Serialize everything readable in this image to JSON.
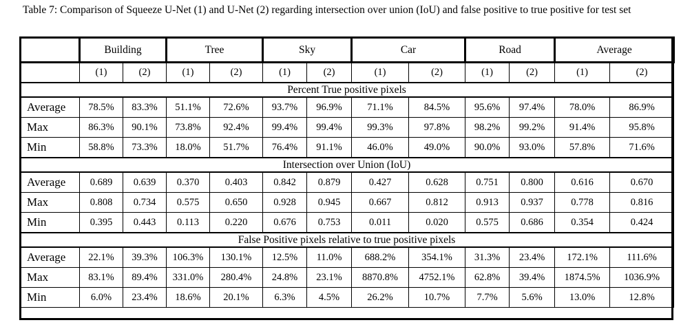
{
  "caption": "Table 7: Comparison of Squeeze U-Net (1) and U-Net (2) regarding intersection over union (IoU) and false positive to true positive for test set",
  "groups": [
    "Building",
    "Tree",
    "Sky",
    "Car",
    "Road",
    "Average"
  ],
  "models": [
    "(1)",
    "(2)"
  ],
  "sections": [
    {
      "title": "Percent True positive pixels",
      "rows": [
        {
          "label": "Average",
          "values": [
            "78.5%",
            "83.3%",
            "51.1%",
            "72.6%",
            "93.7%",
            "96.9%",
            "71.1%",
            "84.5%",
            "95.6%",
            "97.4%",
            "78.0%",
            "86.9%"
          ]
        },
        {
          "label": "Max",
          "values": [
            "86.3%",
            "90.1%",
            "73.8%",
            "92.4%",
            "99.4%",
            "99.4%",
            "99.3%",
            "97.8%",
            "98.2%",
            "99.2%",
            "91.4%",
            "95.8%"
          ]
        },
        {
          "label": "Min",
          "values": [
            "58.8%",
            "73.3%",
            "18.0%",
            "51.7%",
            "76.4%",
            "91.1%",
            "46.0%",
            "49.0%",
            "90.0%",
            "93.0%",
            "57.8%",
            "71.6%"
          ]
        }
      ]
    },
    {
      "title": "Intersection over Union (IoU)",
      "rows": [
        {
          "label": "Average",
          "values": [
            "0.689",
            "0.639",
            "0.370",
            "0.403",
            "0.842",
            "0.879",
            "0.427",
            "0.628",
            "0.751",
            "0.800",
            "0.616",
            "0.670"
          ]
        },
        {
          "label": "Max",
          "values": [
            "0.808",
            "0.734",
            "0.575",
            "0.650",
            "0.928",
            "0.945",
            "0.667",
            "0.812",
            "0.913",
            "0.937",
            "0.778",
            "0.816"
          ]
        },
        {
          "label": "Min",
          "values": [
            "0.395",
            "0.443",
            "0.113",
            "0.220",
            "0.676",
            "0.753",
            "0.011",
            "0.020",
            "0.575",
            "0.686",
            "0.354",
            "0.424"
          ]
        }
      ]
    },
    {
      "title": "False Positive pixels relative to true positive pixels",
      "rows": [
        {
          "label": "Average",
          "values": [
            "22.1%",
            "39.3%",
            "106.3%",
            "130.1%",
            "12.5%",
            "11.0%",
            "688.2%",
            "354.1%",
            "31.3%",
            "23.4%",
            "172.1%",
            "111.6%"
          ]
        },
        {
          "label": "Max",
          "values": [
            "83.1%",
            "89.4%",
            "331.0%",
            "280.4%",
            "24.8%",
            "23.1%",
            "8870.8%",
            "4752.1%",
            "62.8%",
            "39.4%",
            "1874.5%",
            "1036.9%"
          ]
        },
        {
          "label": "Min",
          "values": [
            "6.0%",
            "23.4%",
            "18.6%",
            "20.1%",
            "6.3%",
            "4.5%",
            "26.2%",
            "10.7%",
            "7.7%",
            "5.6%",
            "13.0%",
            "12.8%"
          ]
        }
      ]
    }
  ]
}
